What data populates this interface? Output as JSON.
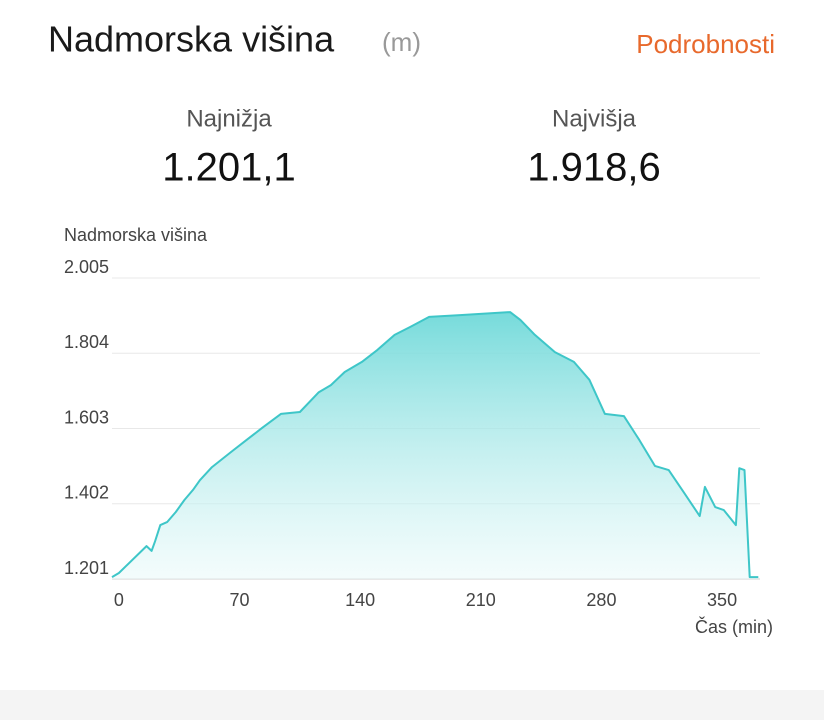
{
  "header": {
    "title": "Nadmorska višina",
    "unit": "(m)",
    "link": "Podrobnosti"
  },
  "stats": [
    {
      "label": "Najnižja",
      "value": "1.201,1"
    },
    {
      "label": "Najvišja",
      "value": "1.918,6"
    }
  ],
  "chart_data": {
    "type": "area",
    "y_label": "Nadmorska višina",
    "x_label": "Čas (min)",
    "x": [
      -4,
      0,
      16,
      19,
      21,
      24,
      28,
      33,
      38,
      43,
      47,
      54,
      65,
      74,
      83,
      94,
      105,
      116,
      123,
      131,
      141,
      150,
      160,
      169,
      180,
      198,
      227,
      233,
      241,
      253,
      264,
      273,
      282,
      293,
      302,
      311,
      319,
      328,
      337,
      340,
      346,
      351,
      358,
      360,
      363,
      366,
      371
    ],
    "values": [
      1206,
      1217,
      1289,
      1276,
      1302,
      1345,
      1353,
      1380,
      1412,
      1439,
      1465,
      1500,
      1540,
      1572,
      1604,
      1642,
      1647,
      1700,
      1719,
      1754,
      1781,
      1813,
      1853,
      1874,
      1901,
      1906,
      1914,
      1893,
      1855,
      1807,
      1781,
      1733,
      1642,
      1636,
      1572,
      1503,
      1492,
      1431,
      1369,
      1447,
      1393,
      1385,
      1345,
      1497,
      1492,
      1206,
      1206
    ],
    "color": "#3ec6c8",
    "xlim": [
      -4,
      372
    ],
    "ylim": [
      1201,
      2005
    ],
    "xticks": [
      0,
      70,
      140,
      210,
      280,
      350
    ],
    "yticks": [
      {
        "value": 1201,
        "label": "1.201"
      },
      {
        "value": 1402,
        "label": "1.402"
      },
      {
        "value": 1603,
        "label": "1.603"
      },
      {
        "value": 1804,
        "label": "1.804"
      },
      {
        "value": 2005,
        "label": "2.005"
      }
    ],
    "grid": true
  }
}
